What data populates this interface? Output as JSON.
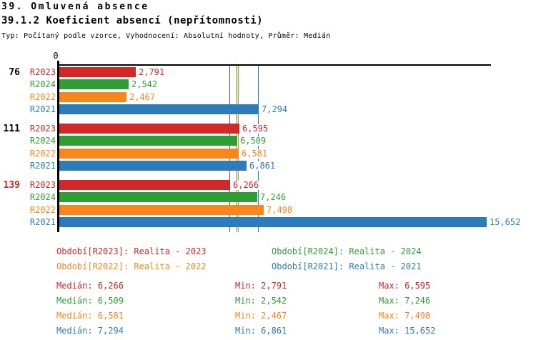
{
  "header": {
    "title": "39. Omluvená absence",
    "subtitle": "39.1.2 Koeficient absencí (nepřítomnosti)",
    "meta": "Typ: Počítaný podle vzorce, Vyhodnocení: Absolutní hodnoty, Průměr: Medián"
  },
  "chart_data": {
    "type": "bar",
    "orientation": "horizontal",
    "axis_zero_label": "0",
    "xlim": [
      0,
      15652
    ],
    "grid": false,
    "series_order": [
      "R2023",
      "R2024",
      "R2022",
      "R2021"
    ],
    "series_colors": {
      "R2023": "#d22828",
      "R2024": "#2f9e35",
      "R2022": "#f8861b",
      "R2021": "#2d7cba"
    },
    "groups": [
      {
        "label": "76",
        "label_color": "#000000",
        "bars": [
          {
            "series": "R2023",
            "value": 2791,
            "value_label": "2,791"
          },
          {
            "series": "R2024",
            "value": 2542,
            "value_label": "2,542"
          },
          {
            "series": "R2022",
            "value": 2467,
            "value_label": "2,467"
          },
          {
            "series": "R2021",
            "value": 7294,
            "value_label": "7,294"
          }
        ]
      },
      {
        "label": "111",
        "label_color": "#000000",
        "bars": [
          {
            "series": "R2023",
            "value": 6595,
            "value_label": "6,595"
          },
          {
            "series": "R2024",
            "value": 6509,
            "value_label": "6,509"
          },
          {
            "series": "R2022",
            "value": 6581,
            "value_label": "6,581"
          },
          {
            "series": "R2021",
            "value": 6861,
            "value_label": "6,861"
          }
        ]
      },
      {
        "label": "139",
        "label_color": "#d22828",
        "bars": [
          {
            "series": "R2023",
            "value": 6266,
            "value_label": "6,266"
          },
          {
            "series": "R2024",
            "value": 7246,
            "value_label": "7,246"
          },
          {
            "series": "R2022",
            "value": 7498,
            "value_label": "7,498"
          },
          {
            "series": "R2021",
            "value": 15652,
            "value_label": "15,652"
          }
        ]
      }
    ],
    "median_lines": [
      {
        "series": "R2023",
        "value": 6266
      },
      {
        "series": "R2024",
        "value": 6509
      },
      {
        "series": "R2022",
        "value": 6581
      },
      {
        "series": "R2021",
        "value": 7294
      }
    ],
    "legend": [
      {
        "series": "R2023",
        "label": "Období[R2023]: Realita - 2023"
      },
      {
        "series": "R2024",
        "label": "Období[R2024]: Realita - 2024"
      },
      {
        "series": "R2022",
        "label": "Období[R2022]: Realita - 2022"
      },
      {
        "series": "R2021",
        "label": "Období[R2021]: Realita - 2021"
      }
    ],
    "stats": [
      {
        "series": "R2023",
        "median": "Medián: 6,266",
        "min": "Min: 2,791",
        "max": "Max: 6,595"
      },
      {
        "series": "R2024",
        "median": "Medián: 6,509",
        "min": "Min: 2,542",
        "max": "Max: 7,246"
      },
      {
        "series": "R2022",
        "median": "Medián: 6,581",
        "min": "Min: 2,467",
        "max": "Max: 7,498"
      },
      {
        "series": "R2021",
        "median": "Medián: 7,294",
        "min": "Min: 6,861",
        "max": "Max: 15,652"
      }
    ]
  }
}
